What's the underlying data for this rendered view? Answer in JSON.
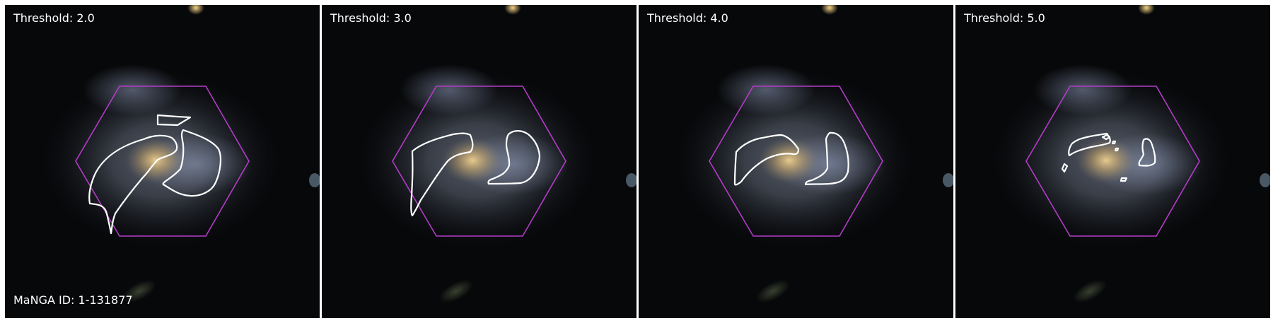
{
  "figure": {
    "manga_id_label": "MaNGA ID: 1-131877"
  },
  "panels": [
    {
      "label": "Threshold: 2.0"
    },
    {
      "label": "Threshold: 3.0"
    },
    {
      "label": "Threshold: 4.0"
    },
    {
      "label": "Threshold: 5.0"
    }
  ],
  "colors": {
    "hexagon": "#b43cc8",
    "contour": "#ffffff",
    "background": "#07080a",
    "galaxy_core": "#d7b46a",
    "galaxy_halo": "#7f8aa0"
  },
  "icons": {
    "galaxy": "spiral-galaxy-image",
    "footprint": "ifu-hexagon-footprint",
    "contour": "threshold-contour"
  }
}
